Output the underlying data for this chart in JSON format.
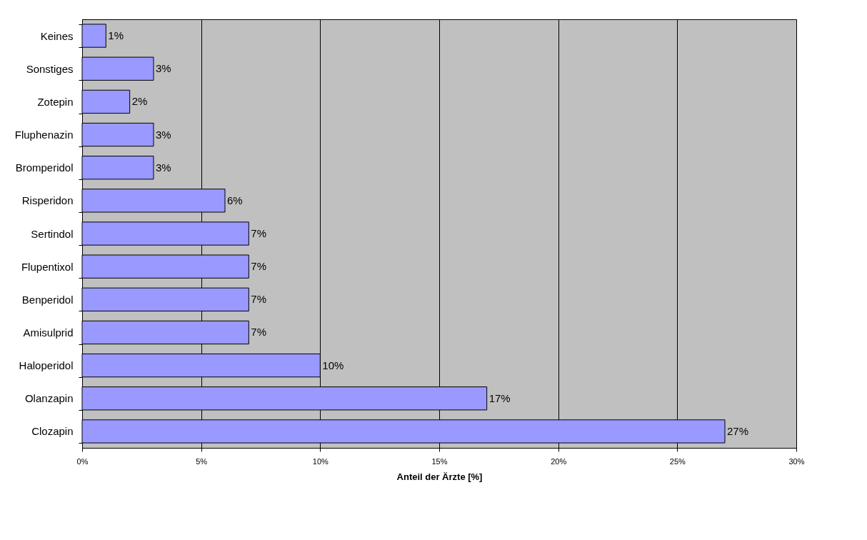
{
  "chart_data": {
    "type": "bar",
    "orientation": "horizontal",
    "xlabel": "Anteil der Ärzte [%]",
    "categories": [
      "Keines",
      "Sonstiges",
      "Zotepin",
      "Fluphenazin",
      "Bromperidol",
      "Risperidon",
      "Sertindol",
      "Flupentixol",
      "Benperidol",
      "Amisulprid",
      "Haloperidol",
      "Olanzapin",
      "Clozapin"
    ],
    "values": [
      1,
      3,
      2,
      3,
      3,
      6,
      7,
      7,
      7,
      7,
      10,
      17,
      27
    ],
    "value_labels": [
      "1%",
      "3%",
      "2%",
      "3%",
      "3%",
      "6%",
      "7%",
      "7%",
      "7%",
      "7%",
      "10%",
      "17%",
      "27%"
    ],
    "color": "#9999ff",
    "xlim": [
      0,
      30
    ],
    "xticks": [
      {
        "value": 0,
        "label": "0%"
      },
      {
        "value": 5,
        "label": "5%"
      },
      {
        "value": 10,
        "label": "10%"
      },
      {
        "value": 15,
        "label": "15%"
      },
      {
        "value": 20,
        "label": "20%"
      },
      {
        "value": 25,
        "label": "25%"
      },
      {
        "value": 30,
        "label": "30%"
      }
    ],
    "grid": "x"
  }
}
